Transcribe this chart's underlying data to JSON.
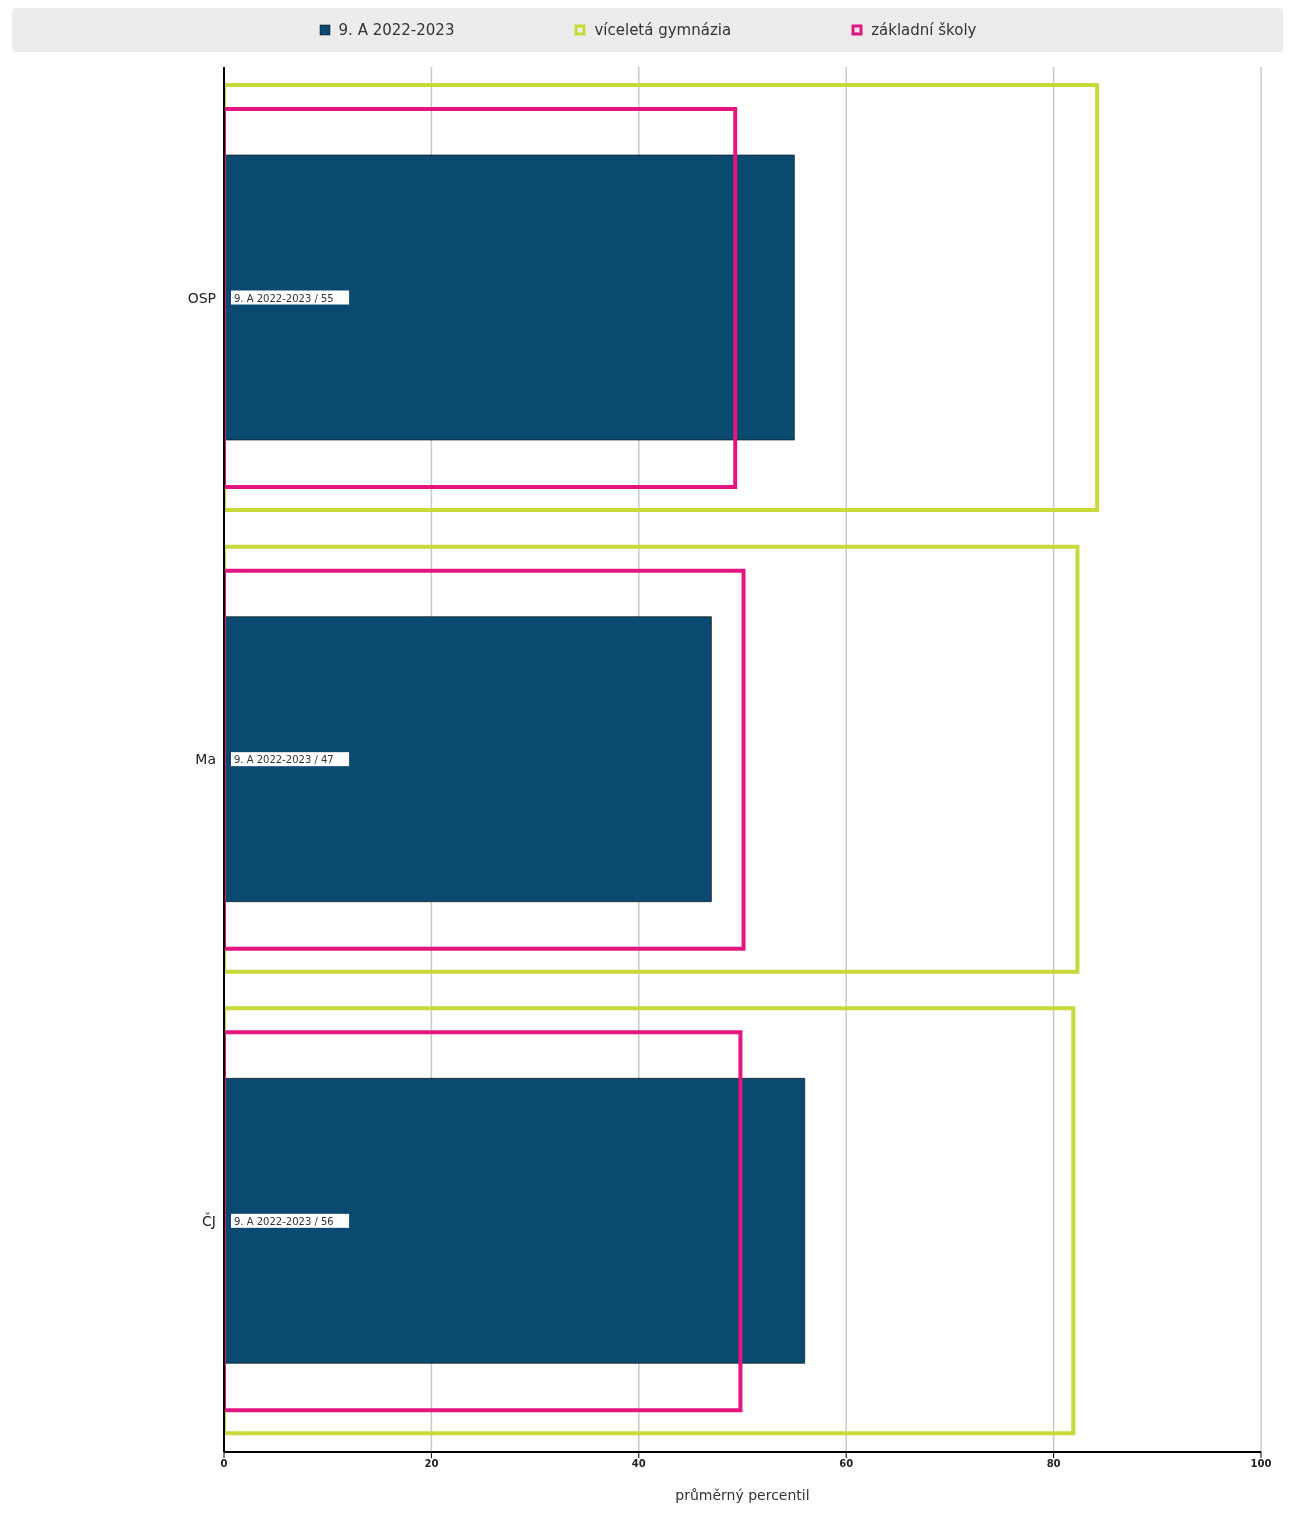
{
  "chart_data": {
    "type": "bar",
    "orientation": "horizontal",
    "categories": [
      "OSP",
      "Ma",
      "ČJ"
    ],
    "series": [
      {
        "name": "9. A 2022-2023",
        "color": "#0a4a70",
        "values": [
          55,
          47,
          56
        ],
        "value_labels": [
          "9. A 2022-2023 / 55",
          "9. A 2022-2023 / 47",
          "9. A 2022-2023 / 56"
        ]
      },
      {
        "name": "víceletá gymnázia",
        "color": "#c8d93a",
        "values": [
          84.2,
          82.3,
          81.9
        ]
      },
      {
        "name": "základní školy",
        "color": "#e4157f",
        "values": [
          49.3,
          50.1,
          49.8
        ]
      }
    ],
    "xlim": [
      0,
      100
    ],
    "xticks": [
      0,
      20,
      40,
      60,
      80,
      100
    ],
    "xlabel": "průměrný percentil",
    "grid": "x",
    "legend": "top"
  }
}
